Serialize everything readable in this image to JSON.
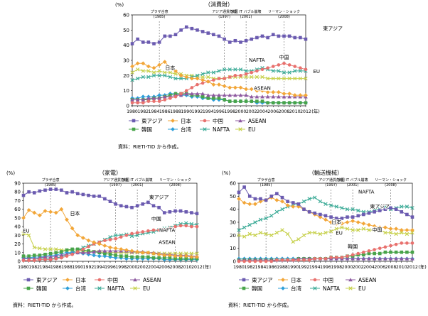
{
  "years": [
    "1980",
    "1981",
    "1982",
    "1983",
    "1984",
    "1985",
    "1986",
    "1987",
    "1988",
    "1989",
    "1990",
    "1991",
    "1992",
    "1993",
    "1994",
    "1995",
    "1996",
    "1997",
    "1998",
    "1999",
    "2000",
    "2001",
    "2002",
    "2003",
    "2004",
    "2005",
    "2006",
    "2007",
    "2008",
    "2009",
    "2010",
    "2011",
    "2012"
  ],
  "year_ticks": [
    "1980",
    "1982",
    "1984",
    "1986",
    "1988",
    "1990",
    "1992",
    "1994",
    "1996",
    "1998",
    "2000",
    "2002",
    "2004",
    "2006",
    "2008",
    "2010",
    "2012"
  ],
  "unit_label": "(%)",
  "year_unit": "(年)",
  "source_note": "資料：RIETI-TID から作成。",
  "series_meta": [
    {
      "key": "east_asia",
      "name": "東アジア",
      "color": "#6b5bb0",
      "marker": "square"
    },
    {
      "key": "japan",
      "name": "日本",
      "color": "#f2a638",
      "marker": "diamond"
    },
    {
      "key": "china",
      "name": "中国",
      "color": "#e8716e",
      "marker": "circle"
    },
    {
      "key": "asean",
      "name": "ASEAN",
      "color": "#8e5aa0",
      "marker": "triangle"
    },
    {
      "key": "korea",
      "name": "韓国",
      "color": "#48a44a",
      "marker": "square"
    },
    {
      "key": "taiwan",
      "name": "台湾",
      "color": "#2e9fd9",
      "marker": "diamond"
    },
    {
      "key": "nafta",
      "name": "NAFTA",
      "color": "#3aaa96",
      "marker": "cross"
    },
    {
      "key": "eu",
      "name": "EU",
      "color": "#c6d04a",
      "marker": "cross"
    }
  ],
  "event_labels": {
    "plaza": "プラザ合意",
    "plaza_year": "(1985)",
    "asian_crisis": "アジア通貨危機",
    "asian_crisis_year": "(1997)",
    "it_bubble": "米国 IT バブル崩壊",
    "it_bubble_year": "(2001)",
    "lehman": "リーマン・ショック",
    "lehman_year": "(2008)"
  },
  "chart_data": [
    {
      "type": "line",
      "title": "（消費財）",
      "ylim": [
        0,
        60
      ],
      "yticks": [
        0,
        10,
        20,
        30,
        40,
        50,
        60
      ],
      "series": {
        "east_asia": [
          41,
          44,
          42,
          42,
          41,
          42,
          46,
          46,
          47,
          50,
          52,
          51,
          50,
          49,
          48,
          47,
          46,
          44,
          42,
          43,
          42,
          43,
          44,
          45,
          46,
          45,
          47,
          46,
          46,
          46,
          45,
          45,
          44
        ],
        "japan": [
          26,
          28,
          28,
          26,
          25,
          27,
          29,
          25,
          23,
          20,
          19,
          18,
          18,
          17,
          16,
          14,
          14,
          13,
          12,
          12,
          12,
          11,
          11,
          10,
          10,
          9,
          9,
          9,
          8,
          8,
          7,
          7,
          7
        ],
        "china": [
          2,
          2,
          2,
          3,
          3,
          3,
          4,
          5,
          6,
          8,
          10,
          12,
          14,
          15,
          16,
          17,
          18,
          18,
          19,
          20,
          20,
          21,
          22,
          23,
          24,
          25,
          26,
          27,
          28,
          27,
          26,
          25,
          24
        ],
        "asean": [
          4,
          4,
          4,
          5,
          5,
          5,
          6,
          6,
          7,
          7,
          8,
          8,
          8,
          8,
          7,
          7,
          7,
          7,
          7,
          7,
          7,
          7,
          6,
          6,
          6,
          6,
          6,
          6,
          6,
          6,
          6,
          6,
          6
        ],
        "korea": [
          4,
          4,
          4,
          4,
          5,
          5,
          6,
          7,
          8,
          8,
          8,
          7,
          7,
          6,
          5,
          5,
          5,
          4,
          3,
          3,
          3,
          3,
          3,
          3,
          3,
          2,
          2,
          2,
          2,
          2,
          2,
          2,
          2
        ],
        "taiwan": [
          5,
          5,
          6,
          6,
          6,
          7,
          7,
          8,
          8,
          7,
          7,
          6,
          6,
          5,
          5,
          4,
          4,
          4,
          3,
          3,
          3,
          3,
          3,
          2,
          2,
          2,
          2,
          2,
          2,
          2,
          2,
          2,
          2
        ],
        "nafta": [
          17,
          18,
          19,
          19,
          20,
          20,
          20,
          19,
          18,
          18,
          18,
          19,
          20,
          21,
          22,
          22,
          23,
          24,
          24,
          24,
          24,
          23,
          23,
          24,
          25,
          24,
          23,
          23,
          22,
          22,
          23,
          23,
          23
        ],
        "eu": [
          22,
          24,
          23,
          23,
          22,
          23,
          22,
          22,
          21,
          21,
          20,
          20,
          19,
          19,
          19,
          18,
          18,
          18,
          19,
          19,
          19,
          19,
          19,
          19,
          19,
          18,
          18,
          18,
          18,
          18,
          18,
          18,
          18
        ]
      },
      "labels": {
        "east_asia": "東アジア",
        "japan": "日本",
        "china": "中国",
        "nafta": "NAFTA",
        "asean": "ASEAN",
        "eu": "EU"
      }
    },
    {
      "type": "line",
      "title": "（家電）",
      "ylim": [
        0,
        90
      ],
      "yticks": [
        0,
        10,
        20,
        30,
        40,
        50,
        60,
        70,
        80,
        90
      ],
      "series": {
        "east_asia": [
          76,
          80,
          79,
          81,
          82,
          83,
          83,
          82,
          79,
          80,
          78,
          77,
          76,
          75,
          75,
          72,
          69,
          66,
          64,
          63,
          62,
          64,
          66,
          68,
          64,
          62,
          56,
          57,
          58,
          58,
          57,
          56,
          55
        ],
        "japan": [
          50,
          59,
          56,
          53,
          58,
          57,
          56,
          60,
          48,
          38,
          30,
          27,
          24,
          22,
          20,
          18,
          16,
          15,
          14,
          13,
          12,
          11,
          10,
          10,
          9,
          8,
          7,
          7,
          6,
          6,
          6,
          5,
          5
        ],
        "china": [
          1,
          1,
          1,
          2,
          2,
          2,
          3,
          4,
          6,
          8,
          11,
          14,
          17,
          20,
          22,
          24,
          25,
          26,
          28,
          30,
          32,
          33,
          34,
          35,
          36,
          36,
          37,
          38,
          40,
          41,
          41,
          40,
          40
        ],
        "asean": [
          3,
          3,
          3,
          4,
          5,
          5,
          6,
          7,
          8,
          9,
          10,
          10,
          10,
          11,
          12,
          12,
          12,
          12,
          12,
          12,
          11,
          11,
          11,
          10,
          10,
          9,
          8,
          8,
          7,
          7,
          7,
          6,
          6
        ],
        "korea": [
          6,
          6,
          7,
          7,
          8,
          9,
          10,
          11,
          13,
          14,
          14,
          13,
          12,
          11,
          10,
          9,
          8,
          7,
          6,
          6,
          5,
          5,
          5,
          5,
          4,
          4,
          4,
          4,
          3,
          3,
          3,
          3,
          3
        ],
        "taiwan": [
          4,
          4,
          5,
          5,
          6,
          7,
          7,
          9,
          10,
          10,
          10,
          9,
          8,
          7,
          6,
          6,
          5,
          4,
          4,
          3,
          3,
          3,
          3,
          3,
          3,
          3,
          2,
          2,
          2,
          2,
          2,
          2,
          2
        ],
        "nafta": [
          3,
          3,
          3,
          3,
          3,
          3,
          4,
          5,
          8,
          10,
          13,
          16,
          18,
          20,
          22,
          25,
          28,
          30,
          30,
          31,
          29,
          30,
          32,
          33,
          34,
          36,
          38,
          39,
          41,
          43,
          44,
          43,
          42
        ],
        "eu": [
          32,
          30,
          16,
          15,
          14,
          14,
          14,
          13,
          13,
          12,
          12,
          12,
          11,
          11,
          11,
          10,
          10,
          10,
          10,
          10,
          10,
          10,
          10,
          10,
          9,
          9,
          9,
          9,
          9,
          9,
          9,
          9,
          9
        ]
      },
      "labels": {
        "east_asia": "東アジア",
        "japan": "日本",
        "china": "中国",
        "nafta": "NAFTA",
        "asean": "ASEAN",
        "eu": "EU"
      }
    },
    {
      "type": "line",
      "title": "（輸送機械）",
      "ylim": [
        0,
        60
      ],
      "yticks": [
        0,
        10,
        20,
        30,
        40,
        50,
        60
      ],
      "series": {
        "east_asia": [
          53,
          57,
          50,
          48,
          48,
          47,
          50,
          52,
          49,
          46,
          45,
          44,
          40,
          38,
          37,
          36,
          35,
          34,
          33,
          33,
          34,
          34,
          35,
          36,
          37,
          38,
          39,
          40,
          41,
          40,
          38,
          36,
          34
        ],
        "japan": [
          48,
          45,
          44,
          44,
          46,
          47,
          49,
          47,
          46,
          43,
          42,
          42,
          40,
          38,
          36,
          34,
          32,
          30,
          29,
          29,
          30,
          31,
          30,
          29,
          28,
          27,
          26,
          26,
          25,
          25,
          24,
          24,
          24
        ],
        "china": [
          0,
          0,
          0,
          0,
          0,
          0,
          0,
          1,
          1,
          1,
          1,
          1,
          1,
          1,
          2,
          2,
          2,
          3,
          3,
          3,
          4,
          5,
          6,
          7,
          8,
          9,
          10,
          11,
          12,
          13,
          14,
          14,
          14
        ],
        "asean": [
          1,
          1,
          1,
          1,
          1,
          1,
          1,
          1,
          1,
          1,
          1,
          2,
          2,
          2,
          2,
          2,
          2,
          2,
          2,
          2,
          2,
          2,
          2,
          2,
          2,
          2,
          2,
          2,
          2,
          2,
          2,
          2,
          2
        ],
        "korea": [
          1,
          1,
          1,
          1,
          1,
          1,
          1,
          1,
          1,
          1,
          1,
          2,
          2,
          2,
          2,
          2,
          2,
          3,
          3,
          3,
          4,
          4,
          5,
          5,
          6,
          6,
          6,
          7,
          7,
          7,
          7,
          7,
          7
        ],
        "taiwan": [
          2,
          2,
          2,
          2,
          2,
          2,
          2,
          2,
          2,
          2,
          2,
          2,
          2,
          2,
          2,
          2,
          2,
          2,
          2,
          2,
          2,
          2,
          2,
          2,
          2,
          2,
          2,
          2,
          2,
          2,
          2,
          2,
          2
        ],
        "nafta": [
          24,
          26,
          28,
          30,
          32,
          33,
          35,
          38,
          40,
          42,
          43,
          44,
          46,
          48,
          49,
          46,
          44,
          43,
          42,
          41,
          40,
          40,
          39,
          38,
          38,
          39,
          40,
          42,
          40,
          41,
          42,
          42,
          41
        ],
        "eu": [
          20,
          19,
          21,
          20,
          22,
          21,
          20,
          22,
          24,
          21,
          15,
          17,
          20,
          22,
          22,
          21,
          22,
          23,
          25,
          26,
          25,
          24,
          24,
          25,
          24,
          24,
          24,
          22,
          22,
          21,
          22,
          21,
          22
        ]
      },
      "labels": {
        "east_asia": "東アジア",
        "japan": "日本",
        "china": "中国",
        "nafta": "NAFTA",
        "korea": "韓国",
        "eu": "EU"
      }
    }
  ]
}
